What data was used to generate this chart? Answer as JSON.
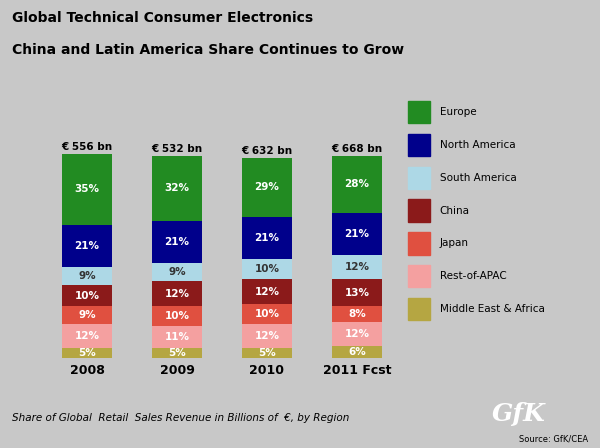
{
  "title_line1": "Global Technical Consumer Electronics",
  "title_line2": "China and Latin America Share Continues to Grow",
  "years": [
    "2008",
    "2009",
    "2010",
    "2011 Fcst"
  ],
  "totals": [
    "€ 556 bn",
    "€ 532 bn",
    "€ 632 bn",
    "€ 668 bn"
  ],
  "categories": [
    "Middle East & Africa",
    "Rest-of-APAC",
    "Japan",
    "China",
    "South America",
    "North America",
    "Europe"
  ],
  "colors": [
    "#b5a642",
    "#f4a0a0",
    "#e05040",
    "#8b1a1a",
    "#add8e6",
    "#00008b",
    "#228b22"
  ],
  "data": {
    "2008": [
      5,
      12,
      9,
      10,
      9,
      21,
      35
    ],
    "2009": [
      5,
      11,
      10,
      12,
      9,
      21,
      32
    ],
    "2010": [
      5,
      12,
      10,
      12,
      10,
      21,
      29
    ],
    "2011 Fcst": [
      6,
      12,
      8,
      13,
      12,
      21,
      28
    ]
  },
  "legend_labels": [
    "Europe",
    "North America",
    "South America",
    "China",
    "Japan",
    "Rest-of-APAC",
    "Middle East & Africa"
  ],
  "legend_colors": [
    "#228b22",
    "#00008b",
    "#add8e6",
    "#8b1a1a",
    "#e05040",
    "#f4a0a0",
    "#b5a642"
  ],
  "background_color": "#c8c8c8",
  "bar_width": 0.55,
  "subtitle_footer": "Share of Global  Retail  Sales Revenue in Billions of  €, by Region",
  "source_text": "Source: GfK/CEA",
  "gfk_box_color": "#ff6600",
  "gfk_text": "GfK"
}
